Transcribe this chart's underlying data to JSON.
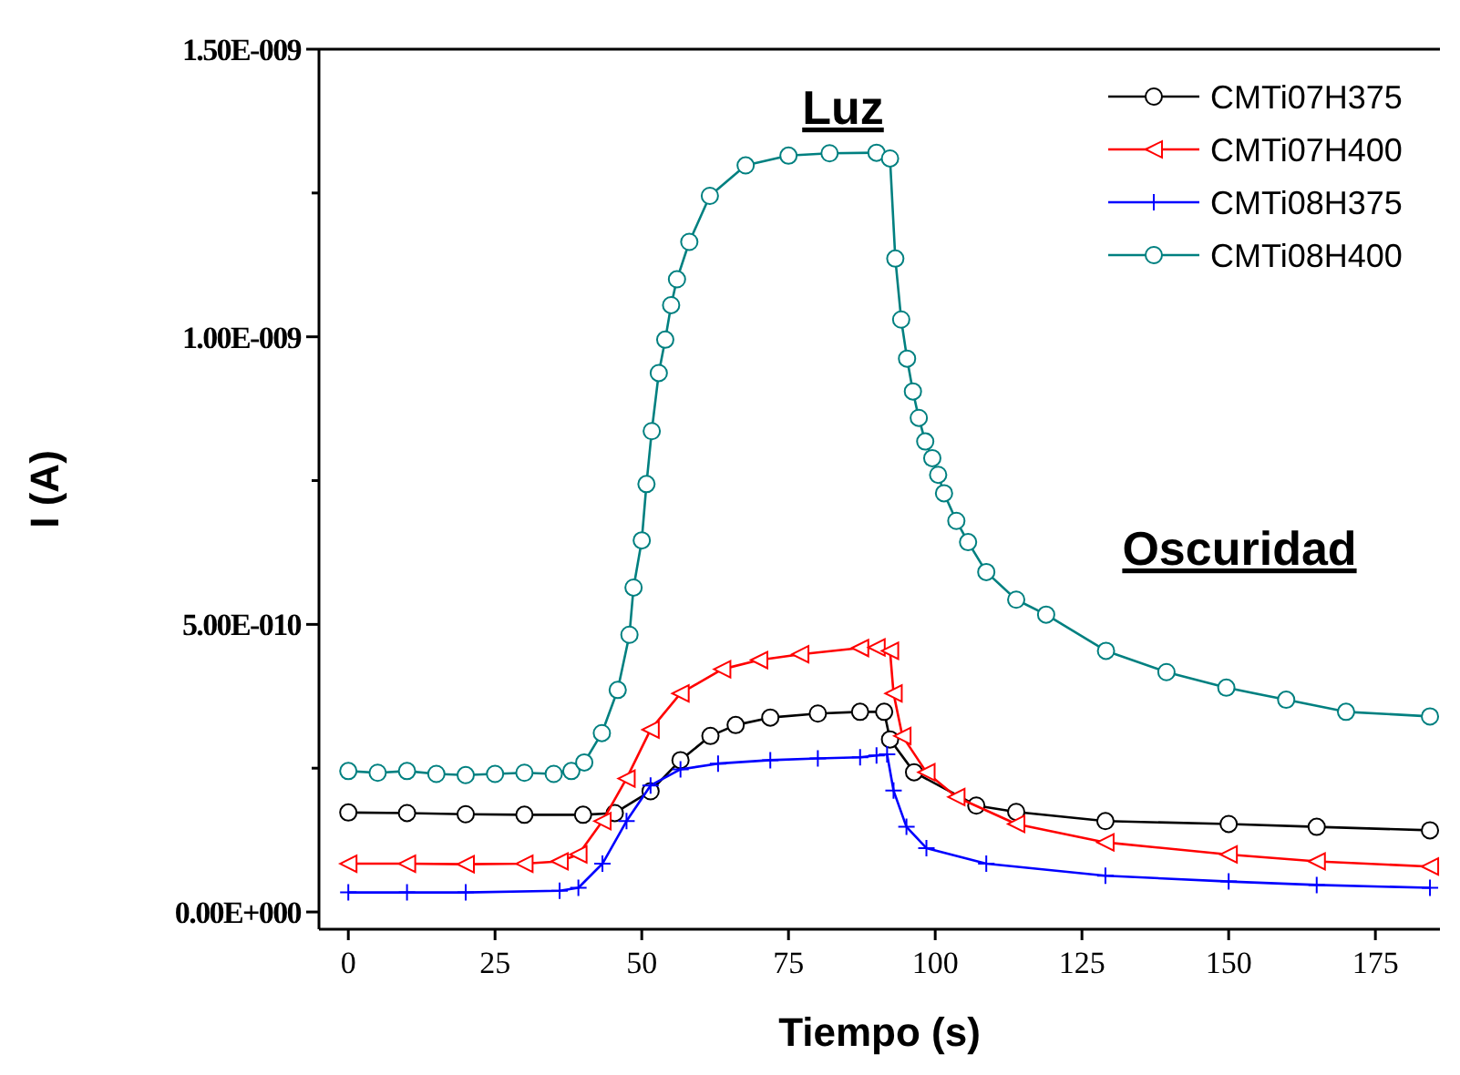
{
  "chart_data": {
    "type": "line",
    "xlabel": "Tiempo (s)",
    "ylabel": "I (A)",
    "xlim": [
      -5,
      186
    ],
    "ylim": [
      -3e-11,
      1.5e-09
    ],
    "xticks": [
      0,
      25,
      50,
      75,
      100,
      125,
      150,
      175
    ],
    "yticks": [
      {
        "value": 0,
        "label": "0.00E+000"
      },
      {
        "value": 2.5e-10,
        "label": null
      },
      {
        "value": 5e-10,
        "label": "5.00E-010"
      },
      {
        "value": 7.5e-10,
        "label": null
      },
      {
        "value": 1e-09,
        "label": "1.00E-009"
      },
      {
        "value": 1.25e-09,
        "label": null
      },
      {
        "value": 1.5e-09,
        "label": "1.50E-009"
      }
    ],
    "grid": false,
    "legend": "top right",
    "line_style": "solid",
    "annotations": [
      "Luz",
      "Oscuridad"
    ],
    "series": [
      {
        "name": "CMTi07H375",
        "color": "#000000",
        "marker": "circle",
        "x": [
          0,
          10,
          20,
          30,
          40,
          45.4,
          51.5,
          56.6,
          61.7,
          66,
          71.9,
          80,
          87.2,
          91.3,
          92.3,
          96.4,
          107,
          113.8,
          129,
          150,
          165,
          184.3
        ],
        "values": [
          1.73e-10,
          1.72e-10,
          1.7e-10,
          1.69e-10,
          1.69e-10,
          1.72e-10,
          2.1e-10,
          2.64e-10,
          3.06e-10,
          3.25e-10,
          3.38e-10,
          3.45e-10,
          3.48e-10,
          3.48e-10,
          3e-10,
          2.43e-10,
          1.85e-10,
          1.74e-10,
          1.58e-10,
          1.53e-10,
          1.48e-10,
          1.42e-10
        ]
      },
      {
        "name": "CMTi07H400",
        "color": "#ff0000",
        "marker": "triangle-left",
        "x": [
          0,
          10,
          20,
          30,
          36,
          39.2,
          43.3,
          47.4,
          51.5,
          56.6,
          63.7,
          70,
          77,
          87.2,
          90,
          92.3,
          92.9,
          94.4,
          98.5,
          103.6,
          113.8,
          129,
          150,
          165,
          184.3
        ],
        "values": [
          8.4e-11,
          8.4e-11,
          8.3e-11,
          8.4e-11,
          8.8e-11,
          1e-10,
          1.58e-10,
          2.32e-10,
          3.17e-10,
          3.8e-10,
          4.22e-10,
          4.38e-10,
          4.48e-10,
          4.59e-10,
          4.6e-10,
          4.54e-10,
          3.8e-10,
          3.06e-10,
          2.43e-10,
          2e-10,
          1.53e-10,
          1.21e-10,
          1e-10,
          8.8e-11,
          7.9e-11
        ]
      },
      {
        "name": "CMTi08H375",
        "color": "#0000ff",
        "marker": "cross",
        "x": [
          0,
          10,
          20,
          36,
          39.2,
          43.3,
          47.4,
          51.5,
          56.6,
          63,
          71.9,
          80,
          87.2,
          90,
          91.8,
          92.9,
          95.1,
          98.5,
          108.7,
          129,
          150,
          165,
          184.3
        ],
        "values": [
          3.4e-11,
          3.4e-11,
          3.4e-11,
          3.7e-11,
          4.2e-11,
          8.4e-11,
          1.58e-10,
          2.2e-10,
          2.48e-10,
          2.58e-10,
          2.64e-10,
          2.67e-10,
          2.69e-10,
          2.72e-10,
          2.74e-10,
          2.11e-10,
          1.48e-10,
          1.11e-10,
          8.4e-11,
          6.3e-11,
          5.3e-11,
          4.7e-11,
          4.2e-11
        ]
      },
      {
        "name": "CMTi08H400",
        "color": "#008080",
        "marker": "circle",
        "x": [
          0,
          5,
          10,
          15,
          20,
          25,
          30,
          35,
          38,
          40.2,
          43.2,
          45.9,
          47.9,
          48.6,
          50,
          50.8,
          51.7,
          52.9,
          54,
          55,
          56,
          58.1,
          61.6,
          67.7,
          75,
          82,
          90,
          92.3,
          93.2,
          94.2,
          95.2,
          96.2,
          97.2,
          98.3,
          99.5,
          100.5,
          101.5,
          103.6,
          105.6,
          108.7,
          113.8,
          118.9,
          129.1,
          139.4,
          149.6,
          159.8,
          170,
          184.3
        ],
        "values": [
          2.45e-10,
          2.42e-10,
          2.45e-10,
          2.4e-10,
          2.38e-10,
          2.4e-10,
          2.42e-10,
          2.4e-10,
          2.45e-10,
          2.6e-10,
          3.11e-10,
          3.86e-10,
          4.82e-10,
          5.64e-10,
          6.46e-10,
          7.44e-10,
          8.36e-10,
          9.37e-10,
          9.95e-10,
          1.055e-09,
          1.1e-09,
          1.165e-09,
          1.245e-09,
          1.298e-09,
          1.315e-09,
          1.319e-09,
          1.32e-09,
          1.31e-09,
          1.136e-09,
          1.03e-09,
          9.62e-10,
          9.05e-10,
          8.59e-10,
          8.18e-10,
          7.89e-10,
          7.6e-10,
          7.28e-10,
          6.8e-10,
          6.43e-10,
          5.91e-10,
          5.43e-10,
          5.17e-10,
          4.54e-10,
          4.17e-10,
          3.9e-10,
          3.69e-10,
          3.48e-10,
          3.4e-10
        ]
      }
    ]
  }
}
